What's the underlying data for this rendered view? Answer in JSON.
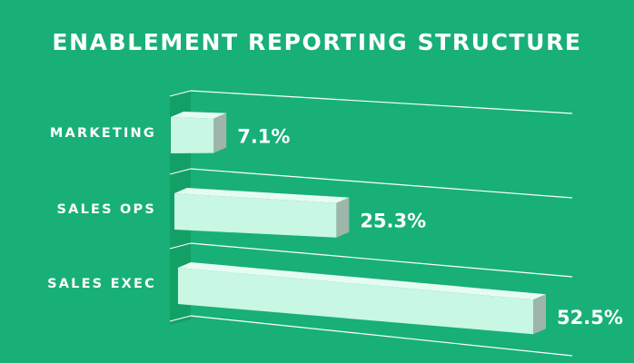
{
  "chart_data": {
    "type": "bar",
    "orientation": "horizontal",
    "style": "3d",
    "title": "ENABLEMENT REPORTING STRUCTURE",
    "categories": [
      "MARKETING",
      "SALES OPS",
      "SALES EXEC"
    ],
    "values": [
      7.1,
      25.3,
      52.5
    ],
    "value_labels": [
      "7.1%",
      "25.3%",
      "52.5%"
    ],
    "value_unit": "%",
    "xlabel": "",
    "ylabel": "",
    "xlim": [
      0,
      60
    ],
    "grid": true,
    "legend": "none"
  },
  "colors": {
    "background": "#18b077",
    "wall": "#13a066",
    "bar_front": "#c8f7e4",
    "bar_top": "#e6fcf2",
    "bar_side": "#9eb5aa",
    "grid_line": "#ffffff",
    "text": "#ffffff"
  }
}
